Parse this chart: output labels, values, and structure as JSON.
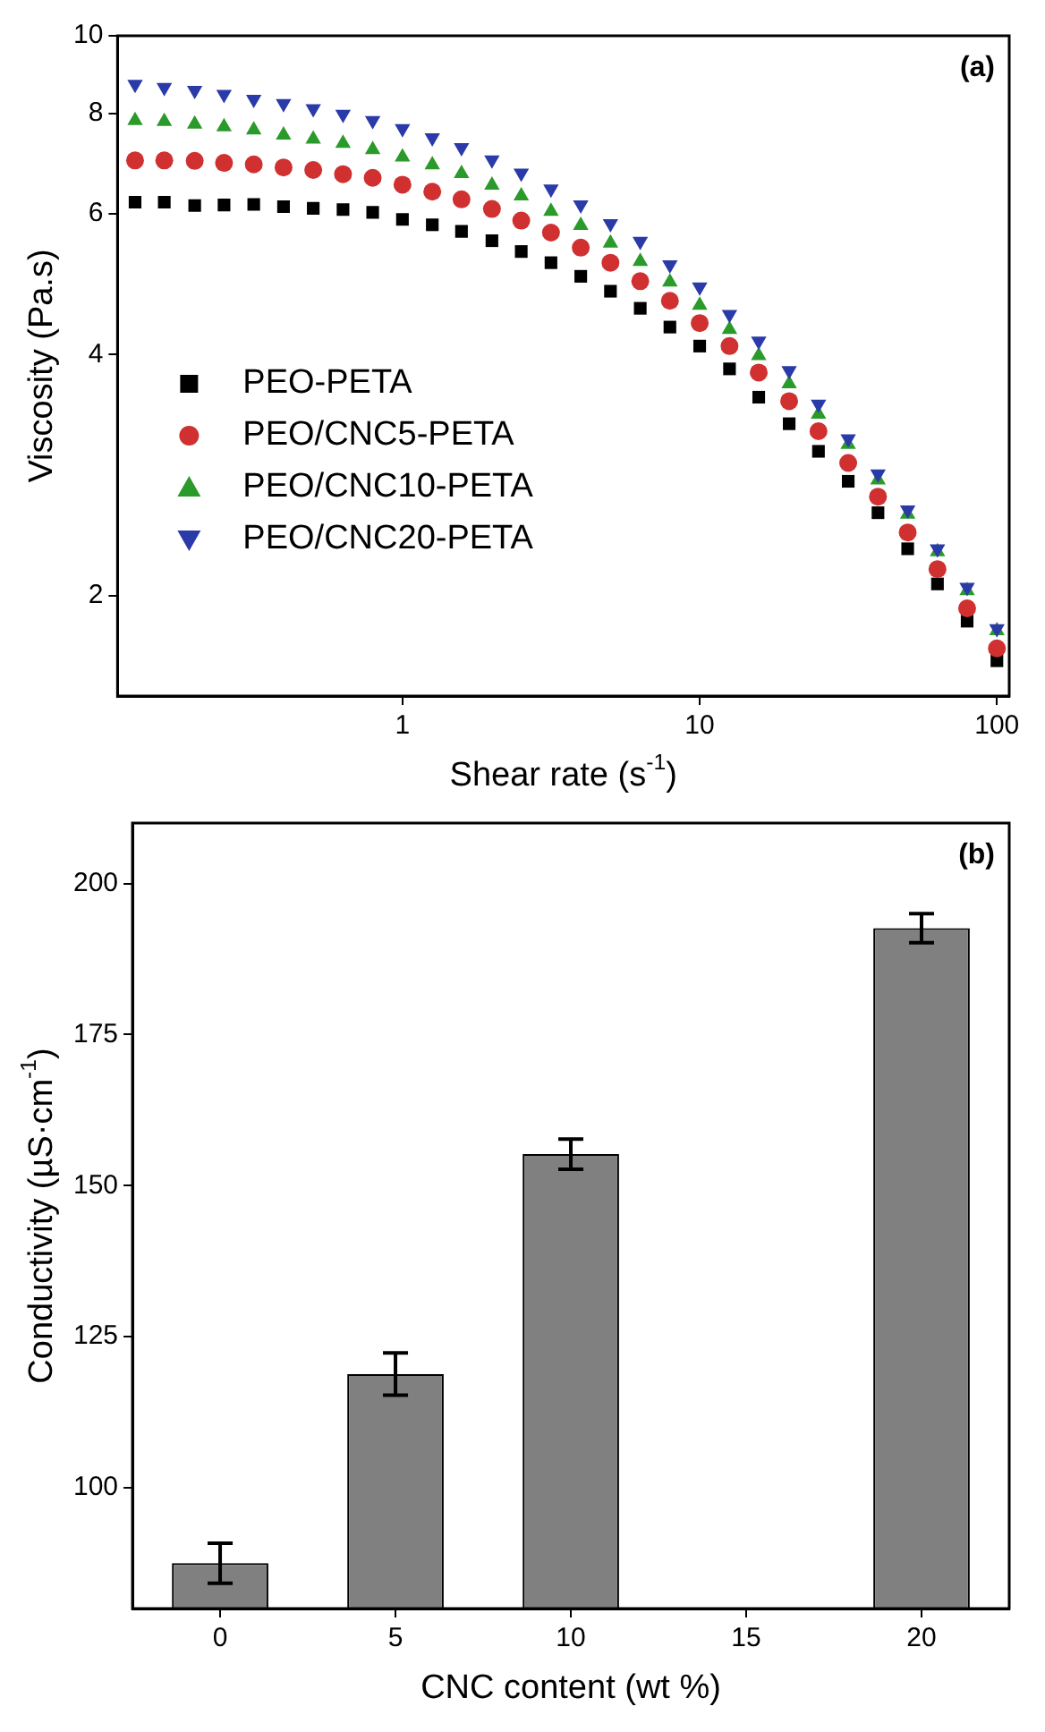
{
  "chart_data": [
    {
      "type": "scatter",
      "xlabel": "Shear rate (s$^{-1}$)",
      "ylabel": "Viscosity (Pa.s)",
      "annotations": [
        "(a)"
      ],
      "log": "xy",
      "grid": false,
      "legend": "left",
      "x": [
        0.126,
        0.158,
        0.2,
        0.251,
        0.316,
        0.398,
        0.501,
        0.631,
        0.794,
        1,
        1.26,
        1.58,
        2,
        2.51,
        3.16,
        3.98,
        5.01,
        6.31,
        7.94,
        10,
        12.6,
        15.8,
        20,
        25.1,
        31.6,
        39.8,
        50.1,
        63.1,
        79.4,
        100
      ],
      "xlim": [
        0.11,
        110
      ],
      "xticks": [
        1,
        10,
        100
      ],
      "ylim": [
        1.5,
        10
      ],
      "yticks": [
        2,
        4,
        6,
        8,
        10
      ],
      "series": [
        {
          "name": "PEO-PETA",
          "color": "#000000",
          "marker": "square",
          "values": [
            6.2,
            6.2,
            6.14,
            6.15,
            6.16,
            6.12,
            6.09,
            6.07,
            6.02,
            5.9,
            5.81,
            5.7,
            5.55,
            5.38,
            5.21,
            5.01,
            4.8,
            4.57,
            4.33,
            4.1,
            3.84,
            3.54,
            3.28,
            3.03,
            2.78,
            2.54,
            2.29,
            2.07,
            1.86,
            1.66
          ]
        },
        {
          "name": "PEO/CNC5-PETA",
          "color": "#d03030",
          "marker": "circle",
          "values": [
            6.99,
            6.99,
            6.98,
            6.94,
            6.91,
            6.85,
            6.8,
            6.72,
            6.65,
            6.52,
            6.39,
            6.25,
            6.08,
            5.88,
            5.68,
            5.44,
            5.21,
            4.94,
            4.67,
            4.38,
            4.1,
            3.8,
            3.5,
            3.21,
            2.93,
            2.66,
            2.4,
            2.16,
            1.93,
            1.72
          ]
        },
        {
          "name": "PEO/CNC10-PETA",
          "color": "#2a9a2a",
          "marker": "triangle",
          "values": [
            7.84,
            7.82,
            7.76,
            7.7,
            7.63,
            7.52,
            7.43,
            7.34,
            7.21,
            7.06,
            6.9,
            6.73,
            6.51,
            6.31,
            6.04,
            5.8,
            5.51,
            5.23,
            4.93,
            4.61,
            4.3,
            3.99,
            3.68,
            3.37,
            3.09,
            2.79,
            2.53,
            2.27,
            2.03,
            1.81
          ]
        },
        {
          "name": "PEO/CNC20-PETA",
          "color": "#2a3aa8",
          "marker": "triangle-down",
          "values": [
            8.7,
            8.62,
            8.55,
            8.45,
            8.33,
            8.23,
            8.11,
            7.98,
            7.84,
            7.66,
            7.46,
            7.25,
            7.0,
            6.74,
            6.44,
            6.15,
            5.83,
            5.54,
            5.18,
            4.86,
            4.49,
            4.16,
            3.82,
            3.47,
            3.14,
            2.84,
            2.56,
            2.29,
            2.05,
            1.82
          ]
        }
      ]
    },
    {
      "type": "bar",
      "xlabel": "CNC content (wt %)",
      "ylabel": "Conductivity (µS·cm$^{-1}$)",
      "annotations": [
        "(b)"
      ],
      "grid": false,
      "legend": false,
      "categories": [
        "0",
        "5",
        "10",
        "15",
        "20"
      ],
      "values": [
        87.5,
        118.8,
        155.2,
        null,
        192.6
      ],
      "errors": [
        3.3,
        3.5,
        2.5,
        null,
        2.4
      ],
      "color": "#808080",
      "ylim": [
        80,
        210
      ],
      "yticks": [
        100,
        125,
        150,
        175,
        200
      ]
    }
  ]
}
